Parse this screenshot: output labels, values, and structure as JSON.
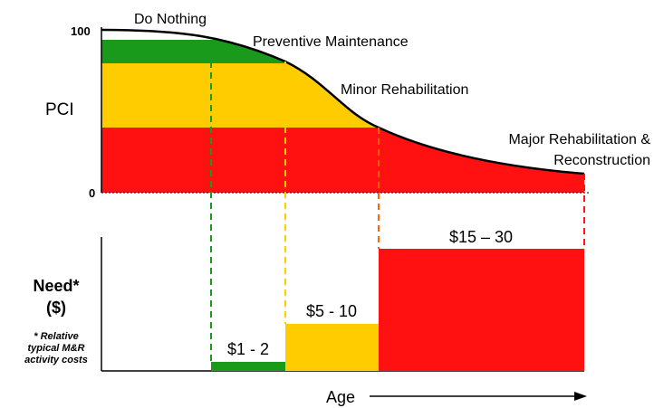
{
  "top_chart": {
    "y_axis_label": "PCI",
    "y_top": "100",
    "y_bottom": "0",
    "stages": [
      "Do Nothing",
      "Preventive Maintenance",
      "Minor Rehabilitation",
      "Major Rehabilitation &",
      "Reconstruction"
    ]
  },
  "bottom_chart": {
    "y_axis_label": "Need*",
    "y_axis_unit": "($)",
    "footnote": [
      "* Relative",
      "typical M&R",
      "activity costs"
    ],
    "costs": [
      "$1 - 2",
      "$5 - 10",
      "$15 – 30"
    ]
  },
  "x_axis_label": "Age"
}
